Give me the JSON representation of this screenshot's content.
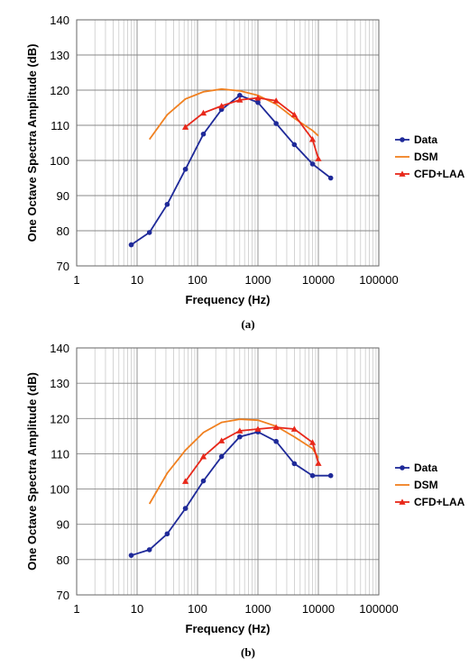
{
  "chart_data": [
    {
      "type": "line",
      "panel_label": "(a)",
      "xlabel": "Frequency (Hz)",
      "ylabel": "One Octave Spectra Amplitude (dB)",
      "xscale": "log",
      "xlim": [
        1,
        100000
      ],
      "ylim": [
        70,
        140
      ],
      "xticks": [
        "1",
        "10",
        "100",
        "1000",
        "10000",
        "100000"
      ],
      "yticks": [
        "70",
        "80",
        "90",
        "100",
        "110",
        "120",
        "130",
        "140"
      ],
      "grid": true,
      "legend_position": "right",
      "series": [
        {
          "name": "Data",
          "color": "#1f2a99",
          "marker": "circle",
          "x": [
            8,
            16,
            31.5,
            63,
            125,
            250,
            500,
            1000,
            2000,
            4000,
            8000,
            16000
          ],
          "y": [
            76,
            79.5,
            87.5,
            97.5,
            107.5,
            114.5,
            118.5,
            116.5,
            110.5,
            104.5,
            99,
            95
          ]
        },
        {
          "name": "DSM",
          "color": "#f08020",
          "marker": "none",
          "x": [
            16,
            31.5,
            63,
            125,
            250,
            500,
            1000,
            2000,
            4000,
            8000,
            10000
          ],
          "y": [
            106,
            113,
            117.5,
            119.5,
            120.3,
            119.8,
            118.5,
            116,
            112,
            108.5,
            107
          ]
        },
        {
          "name": "CFD+LAA",
          "color": "#e8281a",
          "marker": "triangle",
          "x": [
            63,
            125,
            250,
            500,
            1000,
            2000,
            4000,
            8000,
            10000
          ],
          "y": [
            109.5,
            113.5,
            115.5,
            117.2,
            117.8,
            117,
            113,
            106,
            100.5
          ]
        }
      ]
    },
    {
      "type": "line",
      "panel_label": "(b)",
      "xlabel": "Frequency (Hz)",
      "ylabel": "One Octave Spectra Amplitude (dB)",
      "xscale": "log",
      "xlim": [
        1,
        100000
      ],
      "ylim": [
        70,
        140
      ],
      "xticks": [
        "1",
        "10",
        "100",
        "1000",
        "10000",
        "100000"
      ],
      "yticks": [
        "70",
        "80",
        "90",
        "100",
        "110",
        "120",
        "130",
        "140"
      ],
      "grid": true,
      "legend_position": "right",
      "series": [
        {
          "name": "Data",
          "color": "#1f2a99",
          "marker": "circle",
          "x": [
            8,
            16,
            31.5,
            63,
            125,
            250,
            500,
            1000,
            2000,
            4000,
            8000,
            16000
          ],
          "y": [
            81.2,
            82.8,
            87.3,
            94.5,
            102.3,
            109.2,
            114.8,
            116.2,
            113.5,
            107.2,
            103.8,
            103.8
          ]
        },
        {
          "name": "DSM",
          "color": "#f08020",
          "marker": "none",
          "x": [
            16,
            31.5,
            63,
            125,
            250,
            500,
            1000,
            2000,
            4000,
            8000,
            10000
          ],
          "y": [
            95.8,
            104.5,
            111,
            116,
            118.9,
            119.8,
            119.5,
            117.8,
            114.8,
            111.5,
            108.8
          ]
        },
        {
          "name": "CFD+LAA",
          "color": "#e8281a",
          "marker": "triangle",
          "x": [
            63,
            125,
            250,
            500,
            1000,
            2000,
            4000,
            8000,
            10000
          ],
          "y": [
            102.2,
            109.2,
            113.7,
            116.5,
            117,
            117.5,
            117,
            113.2,
            107.3
          ]
        }
      ]
    }
  ]
}
